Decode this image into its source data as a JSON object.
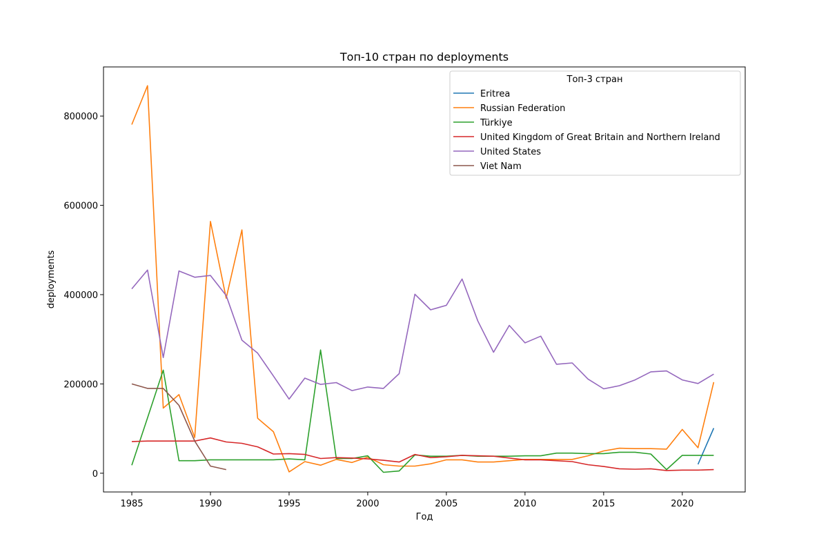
{
  "chart_data": {
    "type": "line",
    "title": "Топ-10 стран по deployments",
    "xlabel": "Год",
    "ylabel": "deployments",
    "xlim": [
      1983.2,
      2024
    ],
    "ylim": [
      -42000,
      910000
    ],
    "xticks": [
      1985,
      1990,
      1995,
      2000,
      2005,
      2010,
      2015,
      2020
    ],
    "yticks": [
      0,
      200000,
      400000,
      600000,
      800000
    ],
    "grid": false,
    "legend": {
      "title": "Топ-3 стран",
      "placement": "top-right"
    },
    "series": [
      {
        "name": "Eritrea",
        "color": "#1f77b4",
        "x": [
          2021,
          2022
        ],
        "y": [
          20000,
          101000
        ]
      },
      {
        "name": "Russian Federation",
        "color": "#ff7f0e",
        "x": [
          1985,
          1986,
          1987,
          1988,
          1989,
          1990,
          1991,
          1992,
          1993,
          1994,
          1995,
          1996,
          1997,
          1998,
          1999,
          2000,
          2001,
          2002,
          2003,
          2004,
          2005,
          2006,
          2007,
          2008,
          2009,
          2010,
          2011,
          2012,
          2013,
          2014,
          2015,
          2016,
          2017,
          2018,
          2019,
          2020,
          2021,
          2022
        ],
        "y": [
          781000,
          868000,
          146000,
          176000,
          80000,
          564000,
          392000,
          545000,
          123000,
          93000,
          3000,
          26000,
          18000,
          31000,
          24000,
          36000,
          19000,
          16000,
          16000,
          21000,
          30000,
          30000,
          25000,
          25000,
          28000,
          31000,
          31000,
          31000,
          31000,
          39000,
          50000,
          56000,
          55000,
          55000,
          54000,
          98000,
          57000,
          204000
        ]
      },
      {
        "name": "Türkiye",
        "color": "#2ca02c",
        "x": [
          1985,
          1986,
          1987,
          1988,
          1989,
          1990,
          1991,
          1992,
          1993,
          1994,
          1995,
          1996,
          1997,
          1998,
          1999,
          2000,
          2001,
          2002,
          2003,
          2004,
          2005,
          2006,
          2007,
          2008,
          2009,
          2010,
          2011,
          2012,
          2013,
          2014,
          2015,
          2016,
          2017,
          2018,
          2019,
          2020,
          2021,
          2022
        ],
        "y": [
          18000,
          124000,
          231000,
          28000,
          28000,
          30000,
          30000,
          30000,
          30000,
          30000,
          32000,
          30000,
          276000,
          33000,
          33000,
          39000,
          2000,
          5000,
          41000,
          38000,
          38000,
          40000,
          38000,
          38000,
          38000,
          39000,
          39000,
          45000,
          45000,
          44000,
          44000,
          47000,
          47000,
          43000,
          8000,
          40000,
          40000,
          40000
        ]
      },
      {
        "name": "United Kingdom of Great Britain and Northern Ireland",
        "color": "#d62728",
        "x": [
          1985,
          1986,
          1987,
          1988,
          1989,
          1990,
          1991,
          1992,
          1993,
          1994,
          1995,
          1996,
          1997,
          1998,
          1999,
          2000,
          2001,
          2002,
          2003,
          2004,
          2005,
          2006,
          2007,
          2008,
          2009,
          2010,
          2011,
          2012,
          2013,
          2014,
          2015,
          2016,
          2017,
          2018,
          2019,
          2020,
          2021,
          2022
        ],
        "y": [
          71000,
          72000,
          72000,
          72000,
          72000,
          79000,
          70000,
          67000,
          59000,
          43000,
          44000,
          42000,
          33000,
          35000,
          34000,
          32000,
          29000,
          25000,
          42000,
          35000,
          37000,
          40000,
          39000,
          38000,
          34000,
          30000,
          30000,
          28000,
          26000,
          19000,
          15000,
          10000,
          9000,
          10000,
          6000,
          7000,
          7000,
          8000
        ]
      },
      {
        "name": "United States",
        "color": "#9467bd",
        "x": [
          1985,
          1986,
          1987,
          1988,
          1989,
          1990,
          1991,
          1992,
          1993,
          1994,
          1995,
          1996,
          1997,
          1998,
          1999,
          2000,
          2001,
          2002,
          2003,
          2004,
          2005,
          2006,
          2007,
          2008,
          2009,
          2010,
          2011,
          2012,
          2013,
          2014,
          2015,
          2016,
          2017,
          2018,
          2019,
          2020,
          2021,
          2022
        ],
        "y": [
          413000,
          455000,
          259000,
          453000,
          439000,
          443000,
          398000,
          298000,
          269000,
          218000,
          166000,
          213000,
          199000,
          203000,
          185000,
          193000,
          190000,
          223000,
          401000,
          366000,
          376000,
          435000,
          341000,
          271000,
          331000,
          292000,
          307000,
          244000,
          247000,
          211000,
          189000,
          196000,
          209000,
          227000,
          229000,
          209000,
          201000,
          222000
        ]
      },
      {
        "name": "Viet Nam",
        "color": "#8c564b",
        "x": [
          1985,
          1986,
          1987,
          1988,
          1989,
          1990,
          1991
        ],
        "y": [
          200000,
          190000,
          190000,
          152000,
          72000,
          16000,
          8000
        ]
      }
    ]
  }
}
